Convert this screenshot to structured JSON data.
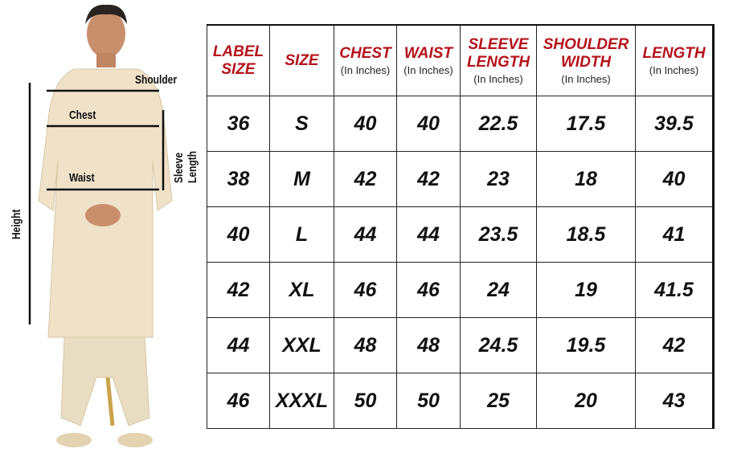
{
  "measure_labels": {
    "shoulder": "Shoulder",
    "chest": "Chest",
    "waist": "Waist",
    "sleeve": "Sleeve Length",
    "height": "Height"
  },
  "colors": {
    "header_text": "#b5121b",
    "kurta": "#efe2c8",
    "border": "#222222"
  },
  "table": {
    "headers": [
      {
        "title": "LABEL SIZE",
        "unit": ""
      },
      {
        "title": "SIZE",
        "unit": ""
      },
      {
        "title": "CHEST",
        "unit": "(In Inches)"
      },
      {
        "title": "WAIST",
        "unit": "(In Inches)"
      },
      {
        "title": "SLEEVE LENGTH",
        "unit": "(In Inches)"
      },
      {
        "title": "SHOULDER WIDTH",
        "unit": "(In Inches)"
      },
      {
        "title": "LENGTH",
        "unit": "(In Inches)"
      }
    ],
    "rows": [
      [
        "36",
        "S",
        "40",
        "40",
        "22.5",
        "17.5",
        "39.5"
      ],
      [
        "38",
        "M",
        "42",
        "42",
        "23",
        "18",
        "40"
      ],
      [
        "40",
        "L",
        "44",
        "44",
        "23.5",
        "18.5",
        "41"
      ],
      [
        "42",
        "XL",
        "46",
        "46",
        "24",
        "19",
        "41.5"
      ],
      [
        "44",
        "XXL",
        "48",
        "48",
        "24.5",
        "19.5",
        "42"
      ],
      [
        "46",
        "XXXL",
        "50",
        "50",
        "25",
        "20",
        "43"
      ]
    ]
  }
}
